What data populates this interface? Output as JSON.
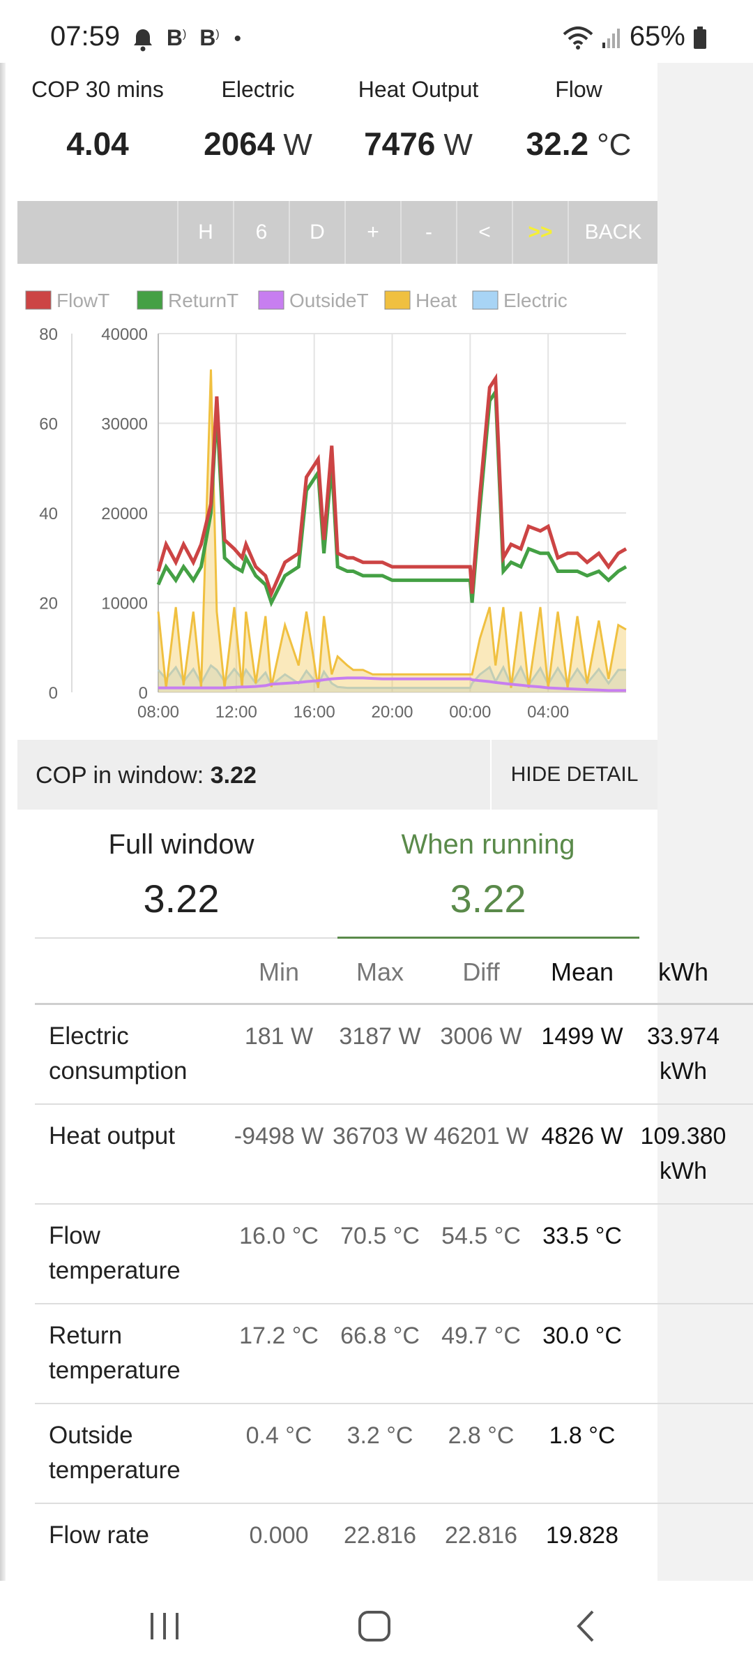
{
  "status_bar": {
    "time": "07:59",
    "battery": "65%",
    "icons": [
      "bell-icon",
      "b-app-icon",
      "b-app-icon",
      "dot-icon",
      "wifi-icon",
      "signal-icon",
      "battery-icon"
    ]
  },
  "stats": [
    {
      "label": "COP 30 mins",
      "value": "4.04",
      "unit": ""
    },
    {
      "label": "Electric",
      "value": "2064",
      "unit": "W"
    },
    {
      "label": "Heat Output",
      "value": "7476",
      "unit": "W"
    },
    {
      "label": "Flow",
      "value": "32.2",
      "unit": "°C"
    }
  ],
  "nav_buttons": [
    "H",
    "6",
    "D",
    "+",
    "-",
    "<",
    ">>",
    "BACK"
  ],
  "colors": {
    "flow": "#cc4444",
    "return": "#44a044",
    "outside": "#c77ef0",
    "heat": "#f0c040",
    "electric": "#a8d4f5",
    "highlight": "#f5ef35",
    "running_green": "#5a8a4a"
  },
  "chart_data": {
    "type": "line",
    "legend": [
      "FlowT",
      "ReturnT",
      "OutsideT",
      "Heat",
      "Electric"
    ],
    "y_left_ticks": [
      "80",
      "60",
      "40",
      "20",
      "0"
    ],
    "y_right_ticks": [
      "40000",
      "30000",
      "20000",
      "10000",
      "0"
    ],
    "x_ticks": [
      "08:00",
      "12:00",
      "16:00",
      "20:00",
      "00:00",
      "04:00"
    ],
    "ylim_temp": [
      0,
      80
    ],
    "ylim_power": [
      0,
      40000
    ],
    "x_hours": [
      0,
      0.4,
      0.9,
      1.3,
      1.8,
      2.2,
      2.7,
      3.0,
      3.4,
      3.9,
      4.3,
      4.5,
      5.0,
      5.5,
      5.8,
      6.5,
      7.2,
      7.6,
      8.2,
      8.5,
      8.9,
      9.2,
      9.7,
      10.0,
      10.5,
      11.0,
      11.5,
      12.0,
      13.0,
      14.0,
      15.0,
      16.0,
      16.1,
      16.5,
      17.0,
      17.3,
      17.7,
      18.1,
      18.6,
      19.0,
      19.6,
      20.0,
      20.5,
      21.0,
      21.5,
      22.0,
      22.6,
      23.1,
      23.6,
      24.0
    ],
    "series": [
      {
        "name": "FlowT",
        "values": [
          27,
          33,
          29,
          33,
          29,
          33,
          42,
          66,
          34,
          32,
          30,
          33,
          28,
          26,
          22,
          29,
          31,
          48,
          52,
          34,
          55,
          31,
          30,
          30,
          29,
          29,
          29,
          28,
          28,
          28,
          28,
          28,
          22,
          44,
          68,
          70,
          30,
          33,
          32,
          37,
          36,
          37,
          30,
          31,
          31,
          29,
          31,
          28,
          31,
          32
        ]
      },
      {
        "name": "ReturnT",
        "values": [
          24,
          28,
          25,
          28,
          25,
          28,
          40,
          63,
          30,
          28,
          27,
          30,
          26,
          24,
          20,
          26,
          28,
          45,
          49,
          31,
          51,
          28,
          27,
          27,
          26,
          26,
          26,
          25,
          25,
          25,
          25,
          25,
          20,
          41,
          65,
          67,
          27,
          29,
          28,
          32,
          31,
          31,
          27,
          27,
          27,
          26,
          27,
          25,
          27,
          28
        ]
      },
      {
        "name": "OutsideT",
        "values": [
          1.0,
          1.0,
          1.0,
          1.0,
          1.0,
          1.0,
          1.0,
          1.0,
          1.0,
          1.1,
          1.2,
          1.2,
          1.3,
          1.5,
          1.8,
          2.0,
          2.2,
          2.4,
          2.6,
          2.8,
          3.0,
          3.1,
          3.2,
          3.2,
          3.2,
          3.1,
          3.0,
          3.0,
          3.0,
          3.0,
          3.0,
          3.0,
          2.8,
          2.6,
          2.4,
          2.2,
          2.0,
          1.8,
          1.6,
          1.4,
          1.2,
          1.0,
          0.9,
          0.8,
          0.7,
          0.6,
          0.5,
          0.4,
          0.4,
          0.4
        ]
      },
      {
        "name": "Heat",
        "values": [
          9000,
          500,
          9500,
          800,
          9000,
          500,
          36000,
          9000,
          500,
          9500,
          500,
          9000,
          1000,
          8500,
          600,
          7500,
          3000,
          9000,
          500,
          8500,
          2000,
          4000,
          3000,
          2500,
          2500,
          2000,
          2000,
          2000,
          2000,
          2000,
          2000,
          2000,
          2000,
          6000,
          9500,
          3000,
          9500,
          500,
          9000,
          500,
          9500,
          500,
          9000,
          500,
          8500,
          1000,
          8000,
          1500,
          7500,
          7000
        ]
      },
      {
        "name": "Electric",
        "values": [
          2500,
          1500,
          2800,
          1200,
          2600,
          1000,
          3000,
          2500,
          1200,
          2600,
          1500,
          2500,
          1000,
          2200,
          800,
          2000,
          1000,
          2400,
          800,
          2300,
          1000,
          600,
          500,
          500,
          500,
          500,
          500,
          500,
          500,
          500,
          500,
          500,
          1000,
          2000,
          2800,
          1200,
          2800,
          800,
          2800,
          800,
          2700,
          900,
          2700,
          900,
          2600,
          1000,
          2600,
          1000,
          2500,
          2500
        ]
      }
    ]
  },
  "cop_window": {
    "label": "COP in window:",
    "value": "3.22",
    "hide_label": "HIDE DETAIL"
  },
  "summary": {
    "full_window_label": "Full window",
    "full_window_value": "3.22",
    "when_running_label": "When running",
    "when_running_value": "3.22"
  },
  "table": {
    "headers": [
      "Min",
      "Max",
      "Diff",
      "Mean",
      "kWh"
    ],
    "rows": [
      {
        "label": "Electric consumption",
        "min": "181 W",
        "max": "3187 W",
        "diff": "3006 W",
        "mean": "1499 W",
        "kwh": "33.974 kWh"
      },
      {
        "label": "Heat output",
        "min": "-9498 W",
        "max": "36703 W",
        "diff": "46201 W",
        "mean": "4826 W",
        "kwh": "109.380 kWh"
      },
      {
        "label": "Flow temperature",
        "min": "16.0 °C",
        "max": "70.5 °C",
        "diff": "54.5 °C",
        "mean": "33.5 °C",
        "kwh": ""
      },
      {
        "label": "Return temperature",
        "min": "17.2 °C",
        "max": "66.8 °C",
        "diff": "49.7 °C",
        "mean": "30.0 °C",
        "kwh": ""
      },
      {
        "label": "Outside temperature",
        "min": "0.4 °C",
        "max": "3.2 °C",
        "diff": "2.8 °C",
        "mean": "1.8 °C",
        "kwh": ""
      },
      {
        "label": "Flow rate",
        "min": "0.000",
        "max": "22.816",
        "diff": "22.816",
        "mean": "19.828",
        "kwh": ""
      }
    ]
  }
}
